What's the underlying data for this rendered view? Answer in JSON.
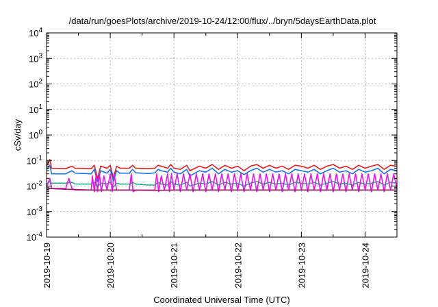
{
  "chart_data": {
    "type": "line",
    "title": "/data/run/goesPlots/archive/2019-10-24/12:00/flux/../bryn/5daysEarthData.plot",
    "xlabel": "Coordinated Universal Time (UTC)",
    "ylabel": "cSv/day",
    "y_scale": "log",
    "ylim": [
      0.0001,
      10000
    ],
    "xlim": [
      "2019-10-19",
      "2019-10-24 12:00"
    ],
    "grid": true,
    "x_ticks": [
      "2019-10-19",
      "2019-10-20",
      "2019-10-21",
      "2019-10-22",
      "2019-10-23",
      "2019-10-24"
    ],
    "y_ticks": [
      {
        "value": 0.0001,
        "base": "10",
        "exp": "-4"
      },
      {
        "value": 0.001,
        "base": "10",
        "exp": "-3"
      },
      {
        "value": 0.01,
        "base": "10",
        "exp": "-2"
      },
      {
        "value": 0.1,
        "base": "10",
        "exp": "-1"
      },
      {
        "value": 1,
        "base": "10",
        "exp": "0"
      },
      {
        "value": 10,
        "base": "10",
        "exp": "1"
      },
      {
        "value": 100,
        "base": "10",
        "exp": "2"
      },
      {
        "value": 1000,
        "base": "10",
        "exp": "3"
      },
      {
        "value": 10000,
        "base": "10",
        "exp": "4"
      }
    ],
    "series": [
      {
        "color": "#e51e1e",
        "values": [
          [
            0,
            0.06
          ],
          [
            0.05,
            0.11
          ],
          [
            0.08,
            0.05
          ],
          [
            0.3,
            0.048
          ],
          [
            0.4,
            0.06
          ],
          [
            0.45,
            0.05
          ],
          [
            0.7,
            0.048
          ],
          [
            0.75,
            0.065
          ],
          [
            0.8,
            0.02
          ],
          [
            0.85,
            0.06
          ],
          [
            0.95,
            0.05
          ],
          [
            1.0,
            0.065
          ],
          [
            1.05,
            0.02
          ],
          [
            1.1,
            0.06
          ],
          [
            1.15,
            0.05
          ],
          [
            1.3,
            0.05
          ],
          [
            1.35,
            0.065
          ],
          [
            1.4,
            0.05
          ],
          [
            1.6,
            0.048
          ],
          [
            1.7,
            0.05
          ],
          [
            1.75,
            0.065
          ],
          [
            1.8,
            0.06
          ],
          [
            1.9,
            0.05
          ],
          [
            1.95,
            0.07
          ],
          [
            2.0,
            0.05
          ],
          [
            2.1,
            0.045
          ],
          [
            2.2,
            0.065
          ],
          [
            2.25,
            0.04
          ],
          [
            2.4,
            0.06
          ],
          [
            2.5,
            0.05
          ],
          [
            2.6,
            0.07
          ],
          [
            2.7,
            0.045
          ],
          [
            2.8,
            0.065
          ],
          [
            2.9,
            0.05
          ],
          [
            3.0,
            0.06
          ],
          [
            3.1,
            0.04
          ],
          [
            3.2,
            0.06
          ],
          [
            3.3,
            0.07
          ],
          [
            3.4,
            0.05
          ],
          [
            3.5,
            0.065
          ],
          [
            3.6,
            0.05
          ],
          [
            3.7,
            0.06
          ],
          [
            3.8,
            0.045
          ],
          [
            3.9,
            0.065
          ],
          [
            4.0,
            0.06
          ],
          [
            4.1,
            0.05
          ],
          [
            4.2,
            0.065
          ],
          [
            4.3,
            0.045
          ],
          [
            4.4,
            0.06
          ],
          [
            4.5,
            0.07
          ],
          [
            4.6,
            0.05
          ],
          [
            4.7,
            0.06
          ],
          [
            4.8,
            0.045
          ],
          [
            4.9,
            0.065
          ],
          [
            5.0,
            0.05
          ],
          [
            5.1,
            0.06
          ],
          [
            5.2,
            0.07
          ],
          [
            5.3,
            0.045
          ],
          [
            5.4,
            0.065
          ],
          [
            5.5,
            0.06
          ]
        ]
      },
      {
        "color": "#1e6ee5",
        "values": [
          [
            0,
            0.045
          ],
          [
            0.05,
            0.065
          ],
          [
            0.08,
            0.03
          ],
          [
            0.3,
            0.03
          ],
          [
            0.4,
            0.04
          ],
          [
            0.45,
            0.032
          ],
          [
            0.7,
            0.03
          ],
          [
            0.75,
            0.045
          ],
          [
            0.8,
            0.015
          ],
          [
            0.85,
            0.04
          ],
          [
            0.95,
            0.032
          ],
          [
            1.0,
            0.045
          ],
          [
            1.05,
            0.015
          ],
          [
            1.1,
            0.04
          ],
          [
            1.15,
            0.032
          ],
          [
            1.3,
            0.032
          ],
          [
            1.35,
            0.045
          ],
          [
            1.4,
            0.033
          ],
          [
            1.6,
            0.031
          ],
          [
            1.7,
            0.033
          ],
          [
            1.75,
            0.045
          ],
          [
            1.8,
            0.04
          ],
          [
            1.9,
            0.035
          ],
          [
            1.95,
            0.05
          ],
          [
            2.0,
            0.035
          ],
          [
            2.1,
            0.03
          ],
          [
            2.2,
            0.045
          ],
          [
            2.25,
            0.025
          ],
          [
            2.4,
            0.04
          ],
          [
            2.5,
            0.035
          ],
          [
            2.6,
            0.05
          ],
          [
            2.7,
            0.03
          ],
          [
            2.8,
            0.045
          ],
          [
            2.9,
            0.035
          ],
          [
            3.0,
            0.04
          ],
          [
            3.1,
            0.028
          ],
          [
            3.2,
            0.04
          ],
          [
            3.3,
            0.05
          ],
          [
            3.4,
            0.035
          ],
          [
            3.5,
            0.045
          ],
          [
            3.6,
            0.035
          ],
          [
            3.7,
            0.04
          ],
          [
            3.8,
            0.03
          ],
          [
            3.9,
            0.045
          ],
          [
            4.0,
            0.04
          ],
          [
            4.1,
            0.035
          ],
          [
            4.2,
            0.045
          ],
          [
            4.3,
            0.03
          ],
          [
            4.4,
            0.04
          ],
          [
            4.5,
            0.05
          ],
          [
            4.6,
            0.035
          ],
          [
            4.7,
            0.04
          ],
          [
            4.8,
            0.03
          ],
          [
            4.9,
            0.045
          ],
          [
            5.0,
            0.035
          ],
          [
            5.1,
            0.04
          ],
          [
            5.2,
            0.05
          ],
          [
            5.3,
            0.03
          ],
          [
            5.4,
            0.045
          ],
          [
            5.5,
            0.04
          ]
        ]
      },
      {
        "color": "#17b08c",
        "values": [
          [
            0,
            0.012
          ],
          [
            0.05,
            0.015
          ],
          [
            0.08,
            0.013
          ],
          [
            0.3,
            0.013
          ],
          [
            0.4,
            0.014
          ],
          [
            0.45,
            0.012
          ],
          [
            0.7,
            0.012
          ],
          [
            0.75,
            0.014
          ],
          [
            0.8,
            0.009
          ],
          [
            0.85,
            0.013
          ],
          [
            0.95,
            0.012
          ],
          [
            1.0,
            0.014
          ],
          [
            1.05,
            0.009
          ],
          [
            1.1,
            0.013
          ],
          [
            1.15,
            0.012
          ],
          [
            1.3,
            0.012
          ],
          [
            1.35,
            0.014
          ],
          [
            1.4,
            0.012
          ],
          [
            1.6,
            0.011
          ],
          [
            1.7,
            0.011
          ],
          [
            1.75,
            0.014
          ],
          [
            1.8,
            0.012
          ],
          [
            1.9,
            0.011
          ],
          [
            1.95,
            0.015
          ],
          [
            2.0,
            0.012
          ],
          [
            2.1,
            0.011
          ],
          [
            2.2,
            0.014
          ],
          [
            2.25,
            0.01
          ],
          [
            2.4,
            0.013
          ],
          [
            2.5,
            0.012
          ],
          [
            2.6,
            0.015
          ],
          [
            2.7,
            0.011
          ],
          [
            2.8,
            0.014
          ],
          [
            2.9,
            0.012
          ],
          [
            3.0,
            0.013
          ],
          [
            3.1,
            0.01
          ],
          [
            3.2,
            0.013
          ],
          [
            3.3,
            0.015
          ],
          [
            3.4,
            0.012
          ],
          [
            3.5,
            0.014
          ],
          [
            3.6,
            0.012
          ],
          [
            3.7,
            0.013
          ],
          [
            3.8,
            0.011
          ],
          [
            3.9,
            0.014
          ],
          [
            4.0,
            0.013
          ],
          [
            4.1,
            0.012
          ],
          [
            4.2,
            0.014
          ],
          [
            4.3,
            0.011
          ],
          [
            4.4,
            0.013
          ],
          [
            4.5,
            0.015
          ],
          [
            4.6,
            0.012
          ],
          [
            4.7,
            0.013
          ],
          [
            4.8,
            0.011
          ],
          [
            4.9,
            0.014
          ],
          [
            5.0,
            0.012
          ],
          [
            5.1,
            0.013
          ],
          [
            5.2,
            0.015
          ],
          [
            5.3,
            0.011
          ],
          [
            5.4,
            0.014
          ],
          [
            5.5,
            0.013
          ]
        ]
      },
      {
        "color": "#ee11ee",
        "values": [
          [
            0,
            0.009
          ],
          [
            0.05,
            0.02
          ],
          [
            0.08,
            0.008
          ],
          [
            0.3,
            0.008
          ],
          [
            0.35,
            0.02
          ],
          [
            0.4,
            0.008
          ],
          [
            0.45,
            0.007
          ],
          [
            0.7,
            0.007
          ],
          [
            0.72,
            0.025
          ],
          [
            0.75,
            0.006
          ],
          [
            0.78,
            0.03
          ],
          [
            0.8,
            0.006
          ],
          [
            0.83,
            0.03
          ],
          [
            0.86,
            0.006
          ],
          [
            0.9,
            0.025
          ],
          [
            0.95,
            0.007
          ],
          [
            1.0,
            0.03
          ],
          [
            1.03,
            0.006
          ],
          [
            1.06,
            0.03
          ],
          [
            1.1,
            0.007
          ],
          [
            1.15,
            0.007
          ],
          [
            1.3,
            0.007
          ],
          [
            1.33,
            0.03
          ],
          [
            1.36,
            0.006
          ],
          [
            1.4,
            0.007
          ],
          [
            1.6,
            0.007
          ],
          [
            1.7,
            0.007
          ],
          [
            1.73,
            0.03
          ],
          [
            1.76,
            0.006
          ],
          [
            1.8,
            0.025
          ],
          [
            1.85,
            0.007
          ],
          [
            1.9,
            0.03
          ],
          [
            1.93,
            0.006
          ],
          [
            1.96,
            0.03
          ],
          [
            2.0,
            0.007
          ],
          [
            2.05,
            0.03
          ],
          [
            2.1,
            0.006
          ],
          [
            2.15,
            0.03
          ],
          [
            2.2,
            0.007
          ],
          [
            2.25,
            0.03
          ],
          [
            2.3,
            0.006
          ],
          [
            2.35,
            0.03
          ],
          [
            2.4,
            0.007
          ],
          [
            2.45,
            0.03
          ],
          [
            2.5,
            0.006
          ],
          [
            2.55,
            0.03
          ],
          [
            2.6,
            0.007
          ],
          [
            2.65,
            0.03
          ],
          [
            2.7,
            0.006
          ],
          [
            2.75,
            0.03
          ],
          [
            2.8,
            0.007
          ],
          [
            2.85,
            0.03
          ],
          [
            2.9,
            0.006
          ],
          [
            2.95,
            0.03
          ],
          [
            3.0,
            0.007
          ],
          [
            3.05,
            0.03
          ],
          [
            3.1,
            0.006
          ],
          [
            3.15,
            0.03
          ],
          [
            3.2,
            0.007
          ],
          [
            3.25,
            0.03
          ],
          [
            3.3,
            0.006
          ],
          [
            3.35,
            0.03
          ],
          [
            3.4,
            0.007
          ],
          [
            3.45,
            0.03
          ],
          [
            3.5,
            0.006
          ],
          [
            3.55,
            0.03
          ],
          [
            3.6,
            0.007
          ],
          [
            3.65,
            0.03
          ],
          [
            3.7,
            0.006
          ],
          [
            3.75,
            0.03
          ],
          [
            3.8,
            0.007
          ],
          [
            3.85,
            0.03
          ],
          [
            3.9,
            0.006
          ],
          [
            3.95,
            0.03
          ],
          [
            4.0,
            0.007
          ],
          [
            4.05,
            0.03
          ],
          [
            4.1,
            0.006
          ],
          [
            4.15,
            0.03
          ],
          [
            4.2,
            0.007
          ],
          [
            4.25,
            0.03
          ],
          [
            4.3,
            0.006
          ],
          [
            4.35,
            0.03
          ],
          [
            4.4,
            0.007
          ],
          [
            4.45,
            0.03
          ],
          [
            4.5,
            0.006
          ],
          [
            4.55,
            0.03
          ],
          [
            4.6,
            0.007
          ],
          [
            4.65,
            0.03
          ],
          [
            4.7,
            0.006
          ],
          [
            4.75,
            0.03
          ],
          [
            4.8,
            0.007
          ],
          [
            4.85,
            0.03
          ],
          [
            4.9,
            0.006
          ],
          [
            4.95,
            0.03
          ],
          [
            5.0,
            0.007
          ],
          [
            5.05,
            0.03
          ],
          [
            5.1,
            0.006
          ],
          [
            5.15,
            0.03
          ],
          [
            5.2,
            0.007
          ],
          [
            5.25,
            0.03
          ],
          [
            5.3,
            0.006
          ],
          [
            5.35,
            0.03
          ],
          [
            5.4,
            0.007
          ],
          [
            5.45,
            0.03
          ],
          [
            5.5,
            0.008
          ]
        ]
      },
      {
        "color": "#8a1a5a",
        "values": [
          [
            0,
            0.007
          ],
          [
            0.05,
            0.008
          ],
          [
            0.3,
            0.0075
          ],
          [
            0.7,
            0.007
          ],
          [
            1.0,
            0.007
          ],
          [
            1.3,
            0.007
          ],
          [
            1.6,
            0.0068
          ],
          [
            1.8,
            0.0068
          ],
          [
            2.0,
            0.007
          ],
          [
            2.5,
            0.007
          ],
          [
            3.0,
            0.007
          ],
          [
            3.5,
            0.007
          ],
          [
            4.0,
            0.007
          ],
          [
            4.5,
            0.007
          ],
          [
            5.0,
            0.007
          ],
          [
            5.5,
            0.007
          ]
        ]
      }
    ]
  }
}
